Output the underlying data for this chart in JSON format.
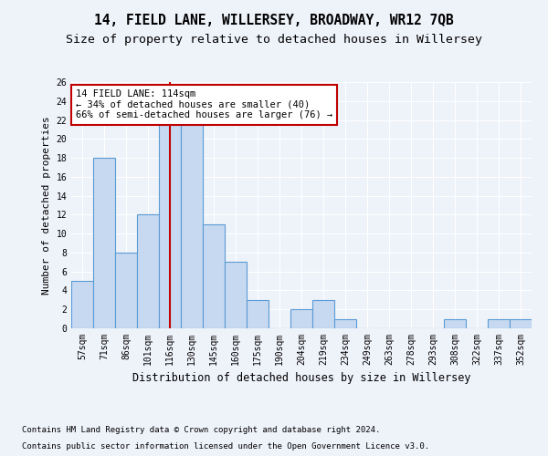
{
  "title": "14, FIELD LANE, WILLERSEY, BROADWAY, WR12 7QB",
  "subtitle": "Size of property relative to detached houses in Willersey",
  "xlabel": "Distribution of detached houses by size in Willersey",
  "ylabel": "Number of detached properties",
  "footer1": "Contains HM Land Registry data © Crown copyright and database right 2024.",
  "footer2": "Contains public sector information licensed under the Open Government Licence v3.0.",
  "categories": [
    "57sqm",
    "71sqm",
    "86sqm",
    "101sqm",
    "116sqm",
    "130sqm",
    "145sqm",
    "160sqm",
    "175sqm",
    "190sqm",
    "204sqm",
    "219sqm",
    "234sqm",
    "249sqm",
    "263sqm",
    "278sqm",
    "293sqm",
    "308sqm",
    "322sqm",
    "337sqm",
    "352sqm"
  ],
  "values": [
    5,
    18,
    8,
    12,
    22,
    22,
    11,
    7,
    3,
    0,
    2,
    3,
    1,
    0,
    0,
    0,
    0,
    1,
    0,
    1,
    1
  ],
  "bar_color": "#c6d9f0",
  "bar_edge_color": "#5b9bd5",
  "highlight_index": 4,
  "highlight_line_color": "#c00000",
  "annotation_line1": "14 FIELD LANE: 114sqm",
  "annotation_line2": "← 34% of detached houses are smaller (40)",
  "annotation_line3": "66% of semi-detached houses are larger (76) →",
  "annotation_box_color": "#ffffff",
  "annotation_box_edge_color": "#c00000",
  "ylim": [
    0,
    26
  ],
  "yticks": [
    0,
    2,
    4,
    6,
    8,
    10,
    12,
    14,
    16,
    18,
    20,
    22,
    24,
    26
  ],
  "background_color": "#eef2f9",
  "grid_color": "#ffffff",
  "title_fontsize": 10.5,
  "subtitle_fontsize": 9.5,
  "axis_fontsize": 8,
  "tick_fontsize": 7,
  "footer_fontsize": 6.5,
  "annotation_fontsize": 7.5
}
